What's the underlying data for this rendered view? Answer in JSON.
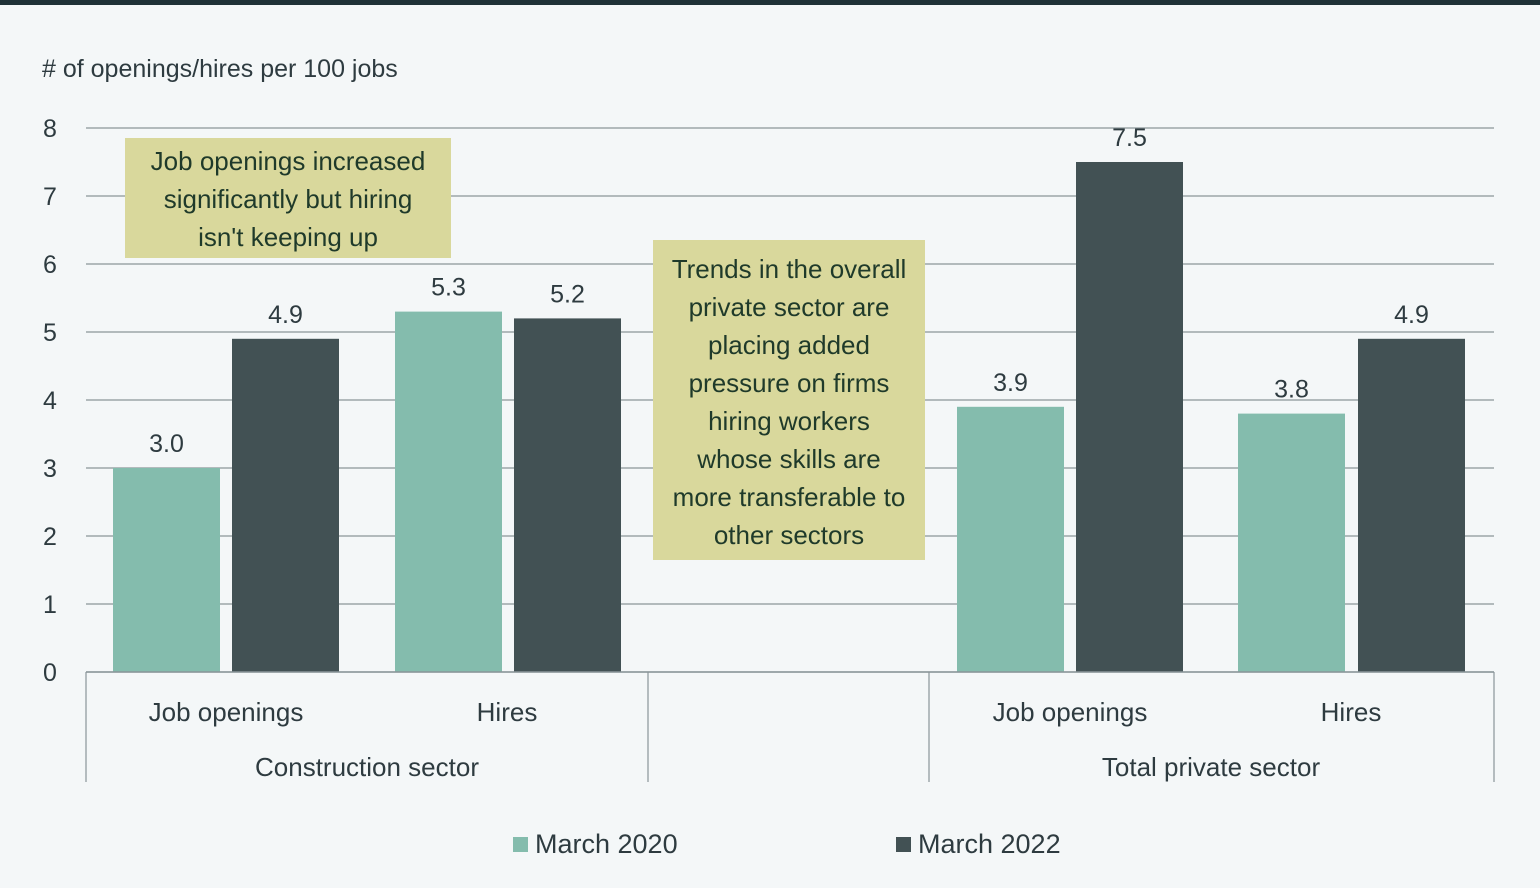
{
  "chart_data": {
    "type": "bar",
    "ylabel": "# of openings/hires per 100 jobs",
    "ylim": [
      0,
      8
    ],
    "yticks": [
      "0",
      "1",
      "2",
      "3",
      "4",
      "5",
      "6",
      "7",
      "8"
    ],
    "grid": true,
    "groups": [
      {
        "name": "Construction sector",
        "categories": [
          "Job openings",
          "Hires"
        ]
      },
      {
        "name": "",
        "categories": []
      },
      {
        "name": "Total private sector",
        "categories": [
          "Job openings",
          "Hires"
        ]
      }
    ],
    "series": [
      {
        "name": "March 2020",
        "color": "#84bcad",
        "values": [
          3.0,
          5.3,
          3.9,
          3.8
        ],
        "labels": [
          "3.0",
          "5.3",
          "3.9",
          "3.8"
        ]
      },
      {
        "name": "March 2022",
        "color": "#425154",
        "values": [
          4.9,
          5.2,
          7.5,
          4.9
        ],
        "labels": [
          "4.9",
          "5.2",
          "7.5",
          "4.9"
        ]
      }
    ],
    "annotations": [
      {
        "lines": [
          "Job openings increased",
          "significantly but hiring",
          "isn't keeping up"
        ]
      },
      {
        "lines": [
          "Trends in the overall",
          "private sector are",
          "placing added",
          "pressure on firms",
          "hiring workers",
          "whose skills are",
          "more transferable to",
          "other sectors"
        ]
      }
    ],
    "legend": {
      "position": "bottom"
    }
  },
  "colors": {
    "top_rule": "#1f3237",
    "grid": "#8a9599",
    "text": "#2e3b40",
    "annotation_bg": "#d9d89c",
    "annotation_text": "#1f3a2a"
  }
}
